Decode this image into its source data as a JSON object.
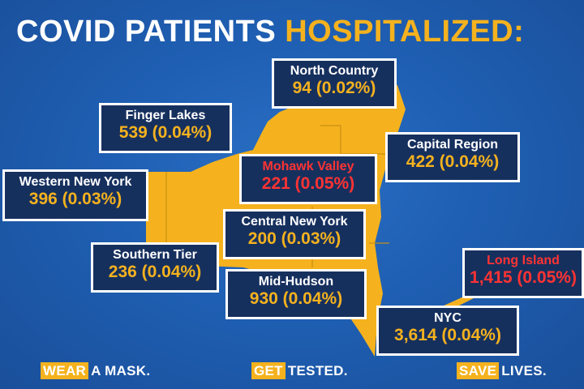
{
  "title": {
    "prefix": "COVID PATIENTS ",
    "highlight": "HOSPITALIZED:"
  },
  "colors": {
    "background": "#1f5fb3",
    "map_fill": "#f5b21e",
    "box_fill": "#16305e",
    "box_border": "#ffffff",
    "count_text": "#f5b21e",
    "alert_text": "#ff3333"
  },
  "regions": {
    "north_country": {
      "name": "North Country",
      "value": "94 (0.02%)"
    },
    "finger_lakes": {
      "name": "Finger Lakes",
      "value": "539 (0.04%)"
    },
    "capital_region": {
      "name": "Capital Region",
      "value": "422 (0.04%)"
    },
    "mohawk_valley": {
      "name": "Mohawk Valley",
      "value": "221 (0.05%)"
    },
    "western_ny": {
      "name": "Western New York",
      "value": "396 (0.03%)"
    },
    "central_ny": {
      "name": "Central New York",
      "value": "200 (0.03%)"
    },
    "southern_tier": {
      "name": "Southern Tier",
      "value": "236 (0.04%)"
    },
    "mid_hudson": {
      "name": "Mid-Hudson",
      "value": "930 (0.04%)"
    },
    "long_island": {
      "name": "Long Island",
      "value": "1,415 (0.05%)"
    },
    "nyc": {
      "name": "NYC",
      "value": "3,614 (0.04%)"
    }
  },
  "slogans": [
    {
      "tag": "WEAR",
      "rest": "A MASK."
    },
    {
      "tag": "GET",
      "rest": "TESTED."
    },
    {
      "tag": "SAVE",
      "rest": "LIVES."
    }
  ]
}
